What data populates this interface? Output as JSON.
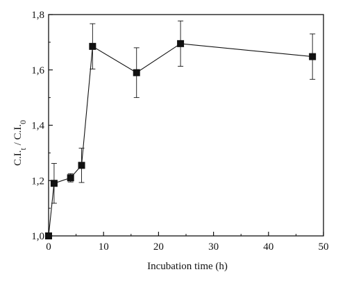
{
  "chart_data": {
    "type": "scatter",
    "title": "",
    "xlabel": "Incubation time (h)",
    "ylabel": "C.I.t / C.I.0",
    "ylabel_parts": {
      "main1": "C.I.",
      "sub1": "t",
      "sep": " / C.I.",
      "sub2": "0"
    },
    "xlim": [
      0,
      50
    ],
    "ylim": [
      1.0,
      1.8
    ],
    "x_ticks": [
      0,
      10,
      20,
      30,
      40,
      50
    ],
    "x_tick_labels": [
      "0",
      "10",
      "20",
      "30",
      "40",
      "50"
    ],
    "y_ticks": [
      1.0,
      1.2,
      1.4,
      1.6,
      1.8
    ],
    "y_tick_labels": [
      "1,0",
      "1,2",
      "1,4",
      "1,6",
      "1,8"
    ],
    "grid": false,
    "legend": "none",
    "marker": "square",
    "connected": true,
    "series": [
      {
        "x": [
          0,
          1,
          4,
          6,
          8,
          16,
          24,
          48
        ],
        "y": [
          1.0,
          1.19,
          1.21,
          1.255,
          1.685,
          1.59,
          1.695,
          1.648
        ],
        "error": [
          0.0,
          0.072,
          0.015,
          0.062,
          0.082,
          0.09,
          0.082,
          0.082
        ]
      }
    ],
    "colors": {
      "line": "#111111",
      "marker": "#111111"
    }
  }
}
